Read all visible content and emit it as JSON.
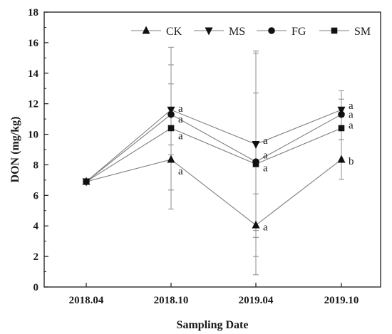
{
  "chart_data": {
    "type": "line",
    "title": "",
    "xlabel": "Sampling Date",
    "ylabel": "DON (mg/kg)",
    "categories": [
      "2018.04",
      "2018.10",
      "2019.04",
      "2019.10"
    ],
    "ylim": [
      0,
      18
    ],
    "yticks": [
      0,
      2,
      4,
      6,
      8,
      10,
      12,
      14,
      16,
      18
    ],
    "grid": false,
    "legend_position": "top-right",
    "series": [
      {
        "name": "CK",
        "marker": "triangle-up",
        "values": [
          6.9,
          8.35,
          4.05,
          8.35
        ],
        "errors": [
          0,
          2.0,
          2.05,
          1.3
        ],
        "significance": [
          "",
          "a",
          "a",
          "b"
        ]
      },
      {
        "name": "MS",
        "marker": "triangle-down",
        "values": [
          6.9,
          11.6,
          9.35,
          11.6
        ],
        "errors": [
          0,
          2.95,
          6.1,
          1.25
        ],
        "significance": [
          "",
          "a",
          "a",
          "a"
        ]
      },
      {
        "name": "FG",
        "marker": "circle",
        "values": [
          6.9,
          11.3,
          8.2,
          11.3
        ],
        "errors": [
          0,
          2.0,
          4.5,
          1.0
        ],
        "significance": [
          "",
          "a",
          "a",
          "a"
        ]
      },
      {
        "name": "SM",
        "marker": "square",
        "values": [
          6.9,
          10.4,
          8.05,
          10.4
        ],
        "errors": [
          0,
          5.3,
          7.25,
          0.75
        ],
        "significance": [
          "",
          "a",
          "a",
          "a"
        ]
      }
    ],
    "colors": {
      "line": "#7f7f7f",
      "marker": "#111111",
      "axis": "#1a1a1a",
      "errorbar": "#8c8c8c"
    }
  }
}
